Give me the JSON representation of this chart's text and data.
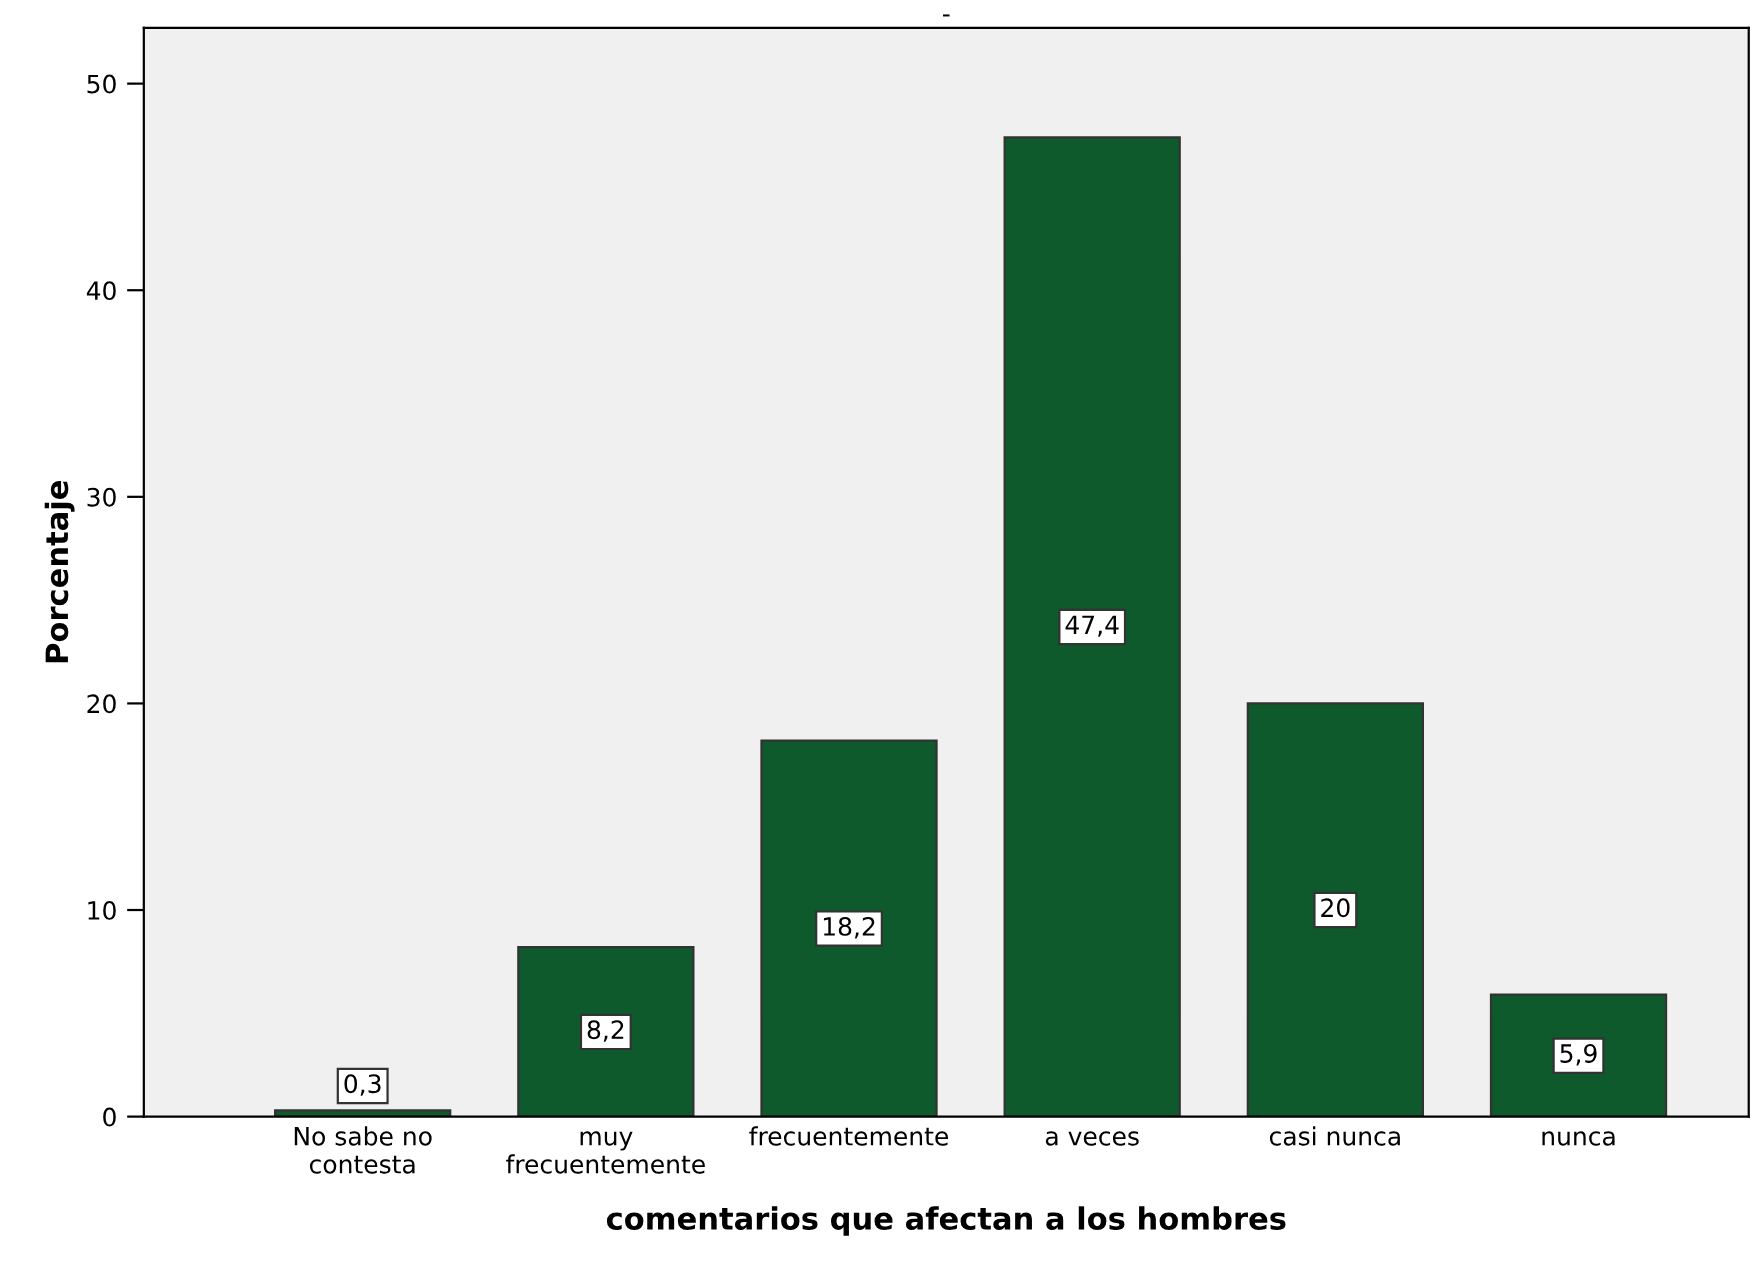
{
  "chart_data": {
    "type": "bar",
    "title": "-",
    "xlabel": "comentarios que afectan a los hombres",
    "ylabel": "Porcentaje",
    "categories": [
      "No sabe no\ncontesta",
      "muy\nfrecuentemente",
      "frecuentemente",
      "a veces",
      "casi nunca",
      "nunca"
    ],
    "values": [
      0.3,
      8.2,
      18.2,
      47.4,
      20,
      5.9
    ],
    "value_labels": [
      "0,3",
      "8,2",
      "18,2",
      "47,4",
      "20",
      "5,9"
    ],
    "color": "#0e5a2d",
    "ylim": [
      0,
      52.7
    ],
    "yticks": [
      0,
      10,
      20,
      30,
      40,
      50
    ],
    "grid": false,
    "legend": false
  }
}
